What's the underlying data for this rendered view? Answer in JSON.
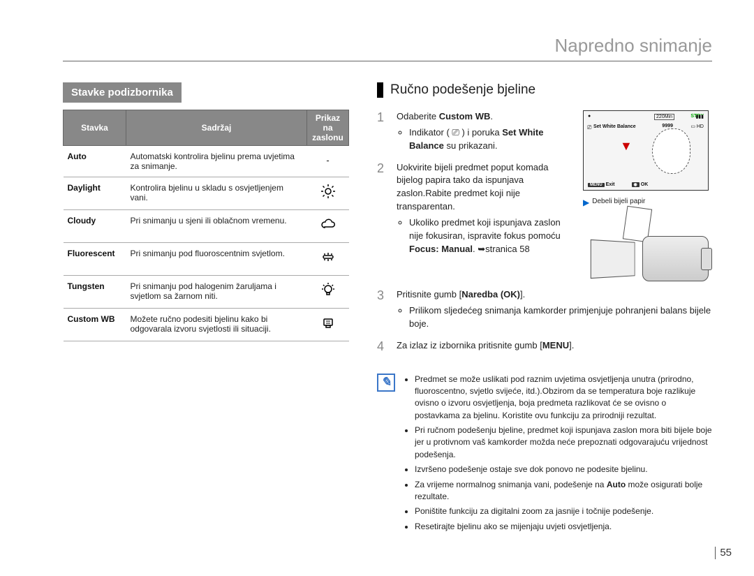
{
  "chapter_title": "Napredno snimanje",
  "left": {
    "heading": "Stavke podizbornika",
    "columns": [
      "Stavka",
      "Sadržaj",
      "Prikaz na zaslonu"
    ],
    "rows": [
      {
        "name": "Auto",
        "desc": "Automatski kontrolira bjelinu prema uvjetima za snimanje.",
        "icon": "dash"
      },
      {
        "name": "Daylight",
        "desc": "Kontrolira bjelinu u skladu s osvjetljenjem vani.",
        "icon": "sun"
      },
      {
        "name": "Cloudy",
        "desc": "Pri snimanju u sjeni ili oblačnom vremenu.",
        "icon": "cloud"
      },
      {
        "name": "Fluorescent",
        "desc": "Pri snimanju pod fluoroscentnim svjetlom.",
        "icon": "fluorescent"
      },
      {
        "name": "Tungsten",
        "desc": "Pri snimanju pod halogenim žaruljama i svjetlom sa žarnom niti.",
        "icon": "tungsten"
      },
      {
        "name": "Custom WB",
        "desc": "Možete ručno podesiti bjelinu kako bi odgovarala izvoru svjetlosti ili situaciji.",
        "icon": "customwb"
      }
    ]
  },
  "right": {
    "heading": "Ručno podešenje bjeline",
    "steps": {
      "s1": {
        "line": "Odaberite ",
        "bold": "Custom WB",
        "tail": ".",
        "sub1a": "Indikator ( ",
        "sub1b": " ) i poruka ",
        "sub1bold": "Set White Balance",
        "sub1c": " su prikazani."
      },
      "s2": {
        "text": "Uokvirite bijeli predmet poput komada bijelog papira tako da ispunjava zaslon.Rabite predmet koji nije transparentan.",
        "sub_a": "Ukoliko predmet koji ispunjava zaslon nije fokusiran, ispravite fokus pomoću ",
        "sub_bold": "Focus: Manual",
        "sub_b": ". ➥stranica 58"
      },
      "s3": {
        "pre": "Pritisnite gumb [",
        "bold": "Naredba (OK)",
        "post": "].",
        "sub": "Prilikom sljedećeg snimanja kamkorder primjenjuje pohranjeni balans bijele boje."
      },
      "s4": {
        "pre": "Za izlaz iz izbornika pritisnite gumb [",
        "bold": "MENU",
        "post": "]."
      }
    },
    "lcd": {
      "stby": "STBY",
      "time": "220Min",
      "counter": "9999",
      "hd": "HD",
      "set_label": "Set White Balance",
      "menu": "MENU",
      "exit": "Exit",
      "ok": "OK"
    },
    "paper_label": "Debeli bijeli papir",
    "notes": [
      "Predmet se može uslikati pod raznim uvjetima osvjetljenja unutra (prirodno, fluoroscentno, svjetlo svijeće, itd.).Obzirom da se temperatura boje razlikuje ovisno o izvoru osvjetljenja, boja predmeta razlikovat će se ovisno o postavkama za bjelinu. Koristite ovu funkciju za prirodniji rezultat.",
      "Pri ručnom podešenju bjeline, predmet koji ispunjava zaslon mora biti bijele boje jer u protivnom vaš kamkorder možda neće prepoznati odgovarajuću vrijednost podešenja.",
      "Izvršeno podešenje ostaje sve dok ponovo ne podesite bjelinu.",
      "Za vrijeme normalnog snimanja vani, podešenje na Auto može osigurati bolje rezultate.",
      "Poništite funkciju za digitalni zoom za jasnije i točnije podešenje.",
      "Resetirajte bjelinu ako se mijenjaju uvjeti osvjetljenja."
    ],
    "notes_auto_bold": "Auto"
  },
  "page_number": "55",
  "colors": {
    "header_bg": "#888888",
    "accent_blue": "#3a76c8",
    "red": "#c00",
    "green": "#0a0"
  }
}
